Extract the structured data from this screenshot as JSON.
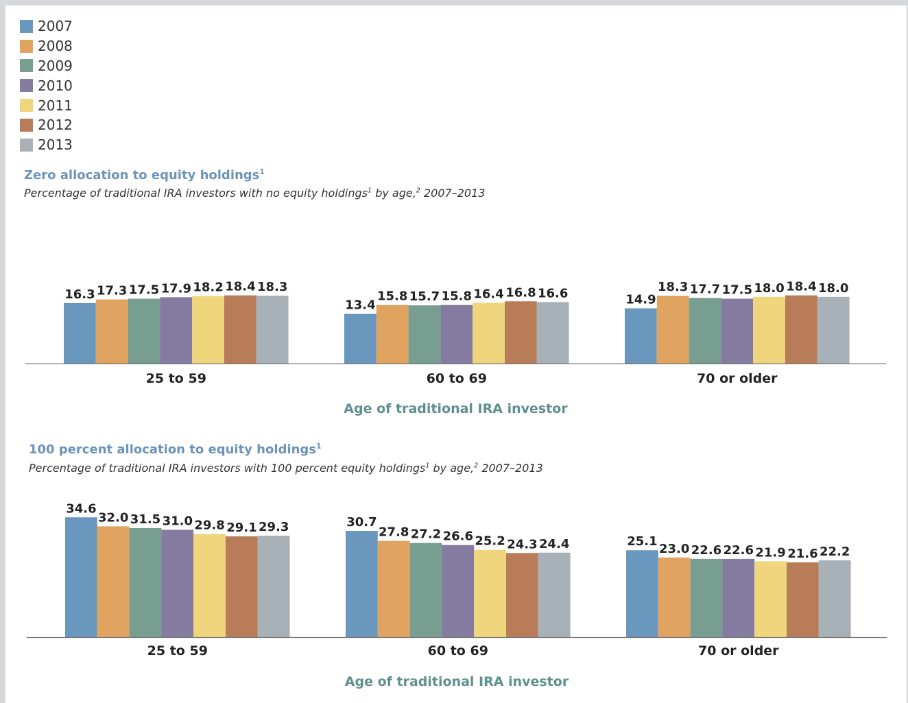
{
  "legend": [
    "2007",
    "2008",
    "2009",
    "2010",
    "2011",
    "2012",
    "2013"
  ],
  "colors": [
    "#6a97bd",
    "#e0a460",
    "#779e91",
    "#857aa0",
    "#efd57c",
    "#b87c58",
    "#a9b1b8"
  ],
  "chart_data": [
    {
      "type": "bar",
      "title": "Zero allocation to equity holdings",
      "title_note": "1",
      "subtitle": "Percentage of traditional IRA investors with no equity holdings",
      "subtitle_note1": "1",
      "subtitle_mid": " by age,",
      "subtitle_note2": "2",
      "subtitle_end": " 2007–2013",
      "xlabel": "Age of traditional IRA investor",
      "categories": [
        "25 to 59",
        "60 to 69",
        "70 or older"
      ],
      "series": [
        {
          "name": "2007",
          "values": [
            16.3,
            13.4,
            14.9
          ]
        },
        {
          "name": "2008",
          "values": [
            17.3,
            15.8,
            18.3
          ]
        },
        {
          "name": "2009",
          "values": [
            17.5,
            15.7,
            17.7
          ]
        },
        {
          "name": "2010",
          "values": [
            17.9,
            15.8,
            17.5
          ]
        },
        {
          "name": "2011",
          "values": [
            18.2,
            16.4,
            18.0
          ]
        },
        {
          "name": "2012",
          "values": [
            18.4,
            16.8,
            18.4
          ]
        },
        {
          "name": "2013",
          "values": [
            18.3,
            16.6,
            18.0
          ]
        }
      ]
    },
    {
      "type": "bar",
      "title": "100 percent allocation to equity holdings",
      "title_note": "1",
      "subtitle": "Percentage of traditional IRA investors with 100 percent equity holdings",
      "subtitle_note1": "1",
      "subtitle_mid": " by age,",
      "subtitle_note2": "2",
      "subtitle_end": " 2007–2013",
      "xlabel": "Age of traditional IRA investor",
      "categories": [
        "25 to 59",
        "60 to 69",
        "70 or older"
      ],
      "series": [
        {
          "name": "2007",
          "values": [
            34.6,
            30.7,
            25.1
          ]
        },
        {
          "name": "2008",
          "values": [
            32.0,
            27.8,
            23.0
          ]
        },
        {
          "name": "2009",
          "values": [
            31.5,
            27.2,
            22.6
          ]
        },
        {
          "name": "2010",
          "values": [
            31.0,
            26.6,
            22.6
          ]
        },
        {
          "name": "2011",
          "values": [
            29.8,
            25.2,
            21.9
          ]
        },
        {
          "name": "2012",
          "values": [
            29.1,
            24.3,
            21.6
          ]
        },
        {
          "name": "2013",
          "values": [
            29.3,
            24.4,
            22.2
          ]
        }
      ]
    }
  ]
}
